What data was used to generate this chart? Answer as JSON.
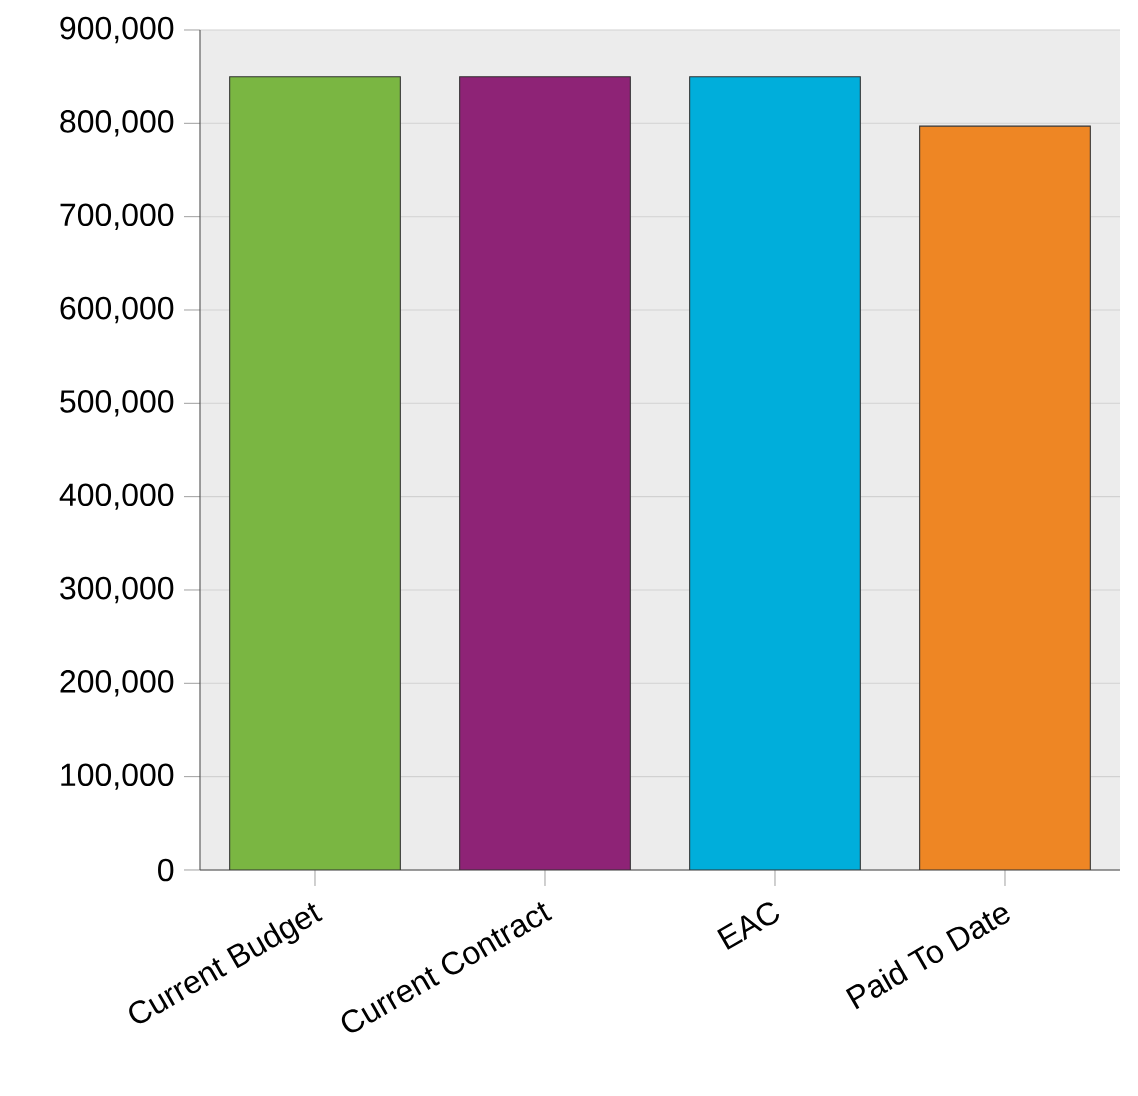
{
  "chart_data": {
    "type": "bar",
    "categories": [
      "Current Budget",
      "Current Contract",
      "EAC",
      "Paid To Date"
    ],
    "values": [
      850000,
      850000,
      850000,
      797000
    ],
    "colors": [
      "#7ab642",
      "#8e2376",
      "#00aedb",
      "#ee8624"
    ],
    "ylim": [
      0,
      900000
    ],
    "yticks": [
      {
        "value": 0,
        "label": "0"
      },
      {
        "value": 100000,
        "label": "100,000"
      },
      {
        "value": 200000,
        "label": "200,000"
      },
      {
        "value": 300000,
        "label": "300,000"
      },
      {
        "value": 400000,
        "label": "400,000"
      },
      {
        "value": 500000,
        "label": "500,000"
      },
      {
        "value": 600000,
        "label": "600,000"
      },
      {
        "value": 700000,
        "label": "700,000"
      },
      {
        "value": 800000,
        "label": "800,000"
      },
      {
        "value": 900000,
        "label": "900,000"
      }
    ],
    "grid": "y"
  }
}
